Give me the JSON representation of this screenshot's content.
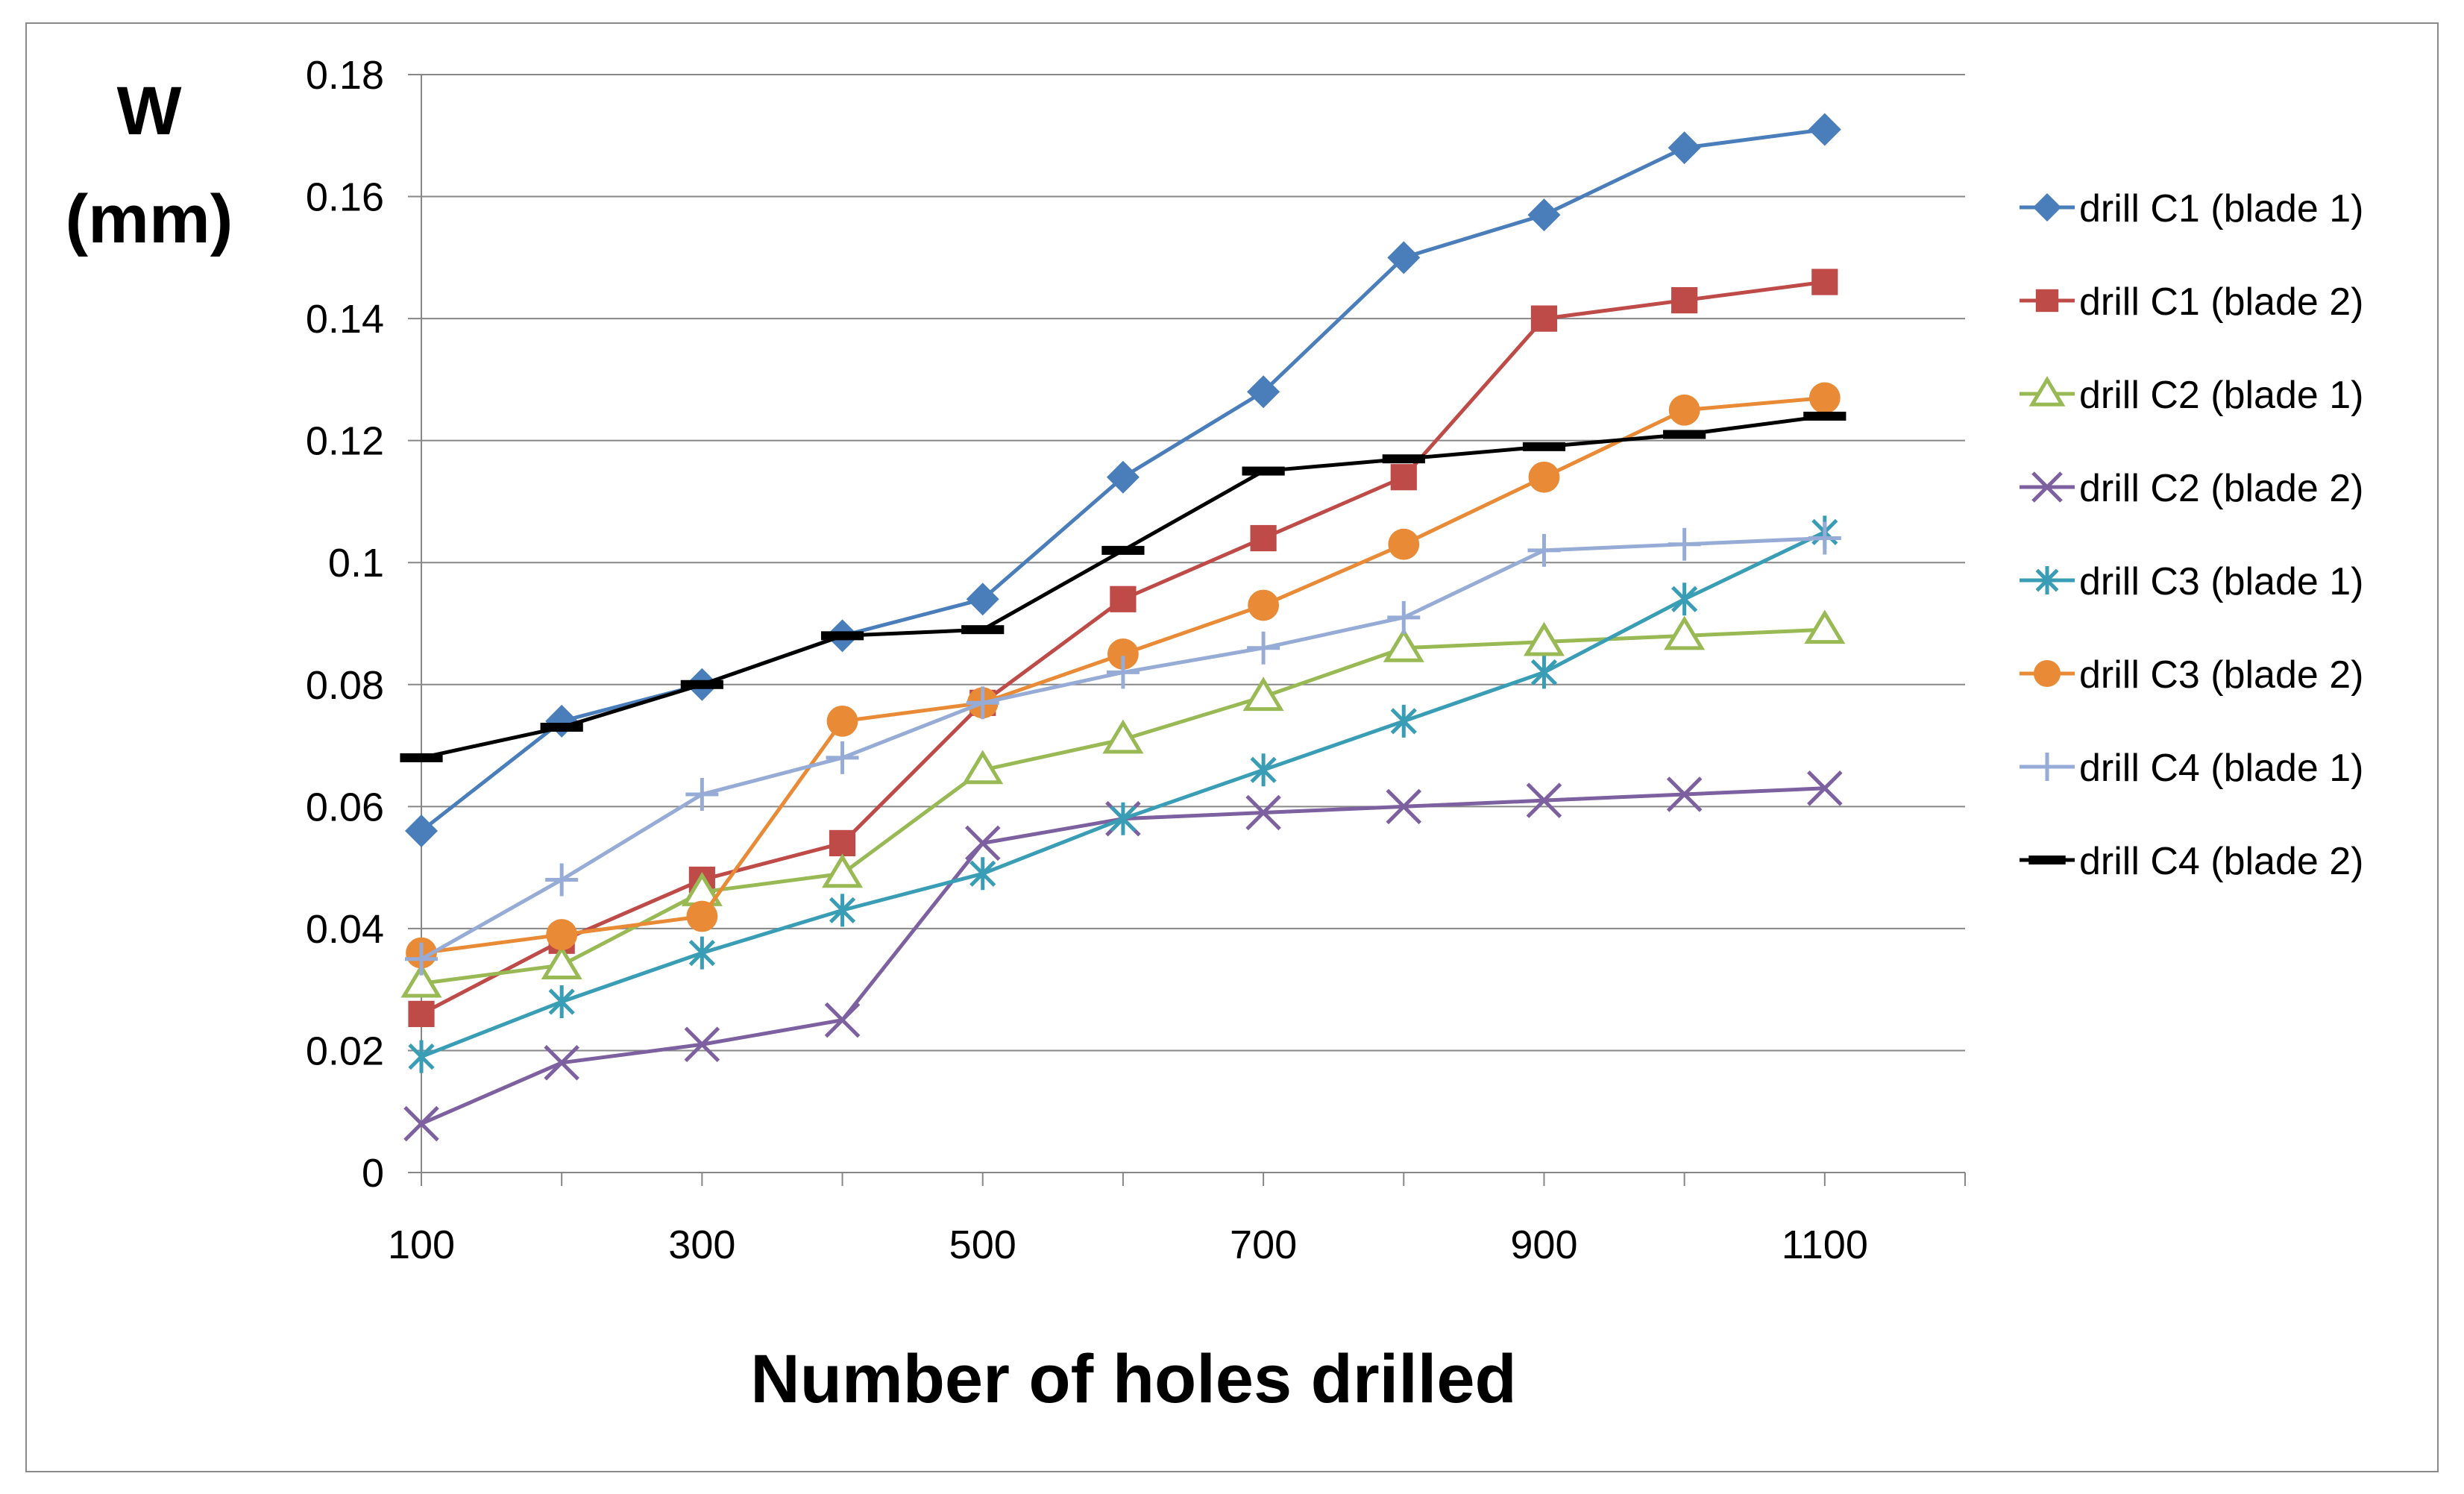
{
  "chart_data": {
    "type": "line",
    "title": "",
    "xlabel": "Number of holes drilled",
    "ylabel_line1": "W",
    "ylabel_line2": "(mm)",
    "x": [
      100,
      200,
      300,
      400,
      500,
      600,
      700,
      800,
      900,
      1000,
      1100
    ],
    "xlim": [
      100,
      1200
    ],
    "ylim": [
      0,
      0.18
    ],
    "xticks": [
      "100",
      "300",
      "500",
      "700",
      "900",
      "1100"
    ],
    "yticks": [
      "0",
      "0.02",
      "0.04",
      "0.06",
      "0.08",
      "0.1",
      "0.12",
      "0.14",
      "0.16",
      "0.18"
    ],
    "grid": "horizontal",
    "legend_position": "right",
    "series": [
      {
        "name": "drill C1 (blade 1)",
        "color": "#4A7EBB",
        "marker": "diamond",
        "values": [
          0.056,
          0.074,
          0.08,
          0.088,
          0.094,
          0.114,
          0.128,
          0.15,
          0.157,
          0.168,
          0.171
        ]
      },
      {
        "name": "drill C1 (blade 2)",
        "color": "#BE4B48",
        "marker": "square",
        "values": [
          0.026,
          0.038,
          0.048,
          0.054,
          0.077,
          0.094,
          0.104,
          0.114,
          0.14,
          0.143,
          0.146
        ]
      },
      {
        "name": "drill C2 (blade 1)",
        "color": "#98B954",
        "marker": "triangle",
        "values": [
          0.031,
          0.034,
          0.046,
          0.049,
          0.066,
          0.071,
          0.078,
          0.086,
          0.087,
          0.088,
          0.089
        ]
      },
      {
        "name": "drill C2 (blade 2)",
        "color": "#7D60A0",
        "marker": "x",
        "values": [
          0.008,
          0.018,
          0.021,
          0.025,
          0.054,
          0.058,
          0.059,
          0.06,
          0.061,
          0.062,
          0.063
        ]
      },
      {
        "name": "drill C3 (blade 1)",
        "color": "#3A9DB6",
        "marker": "asterisk",
        "values": [
          0.019,
          0.028,
          0.036,
          0.043,
          0.049,
          0.058,
          0.066,
          0.074,
          0.082,
          0.094,
          0.105
        ]
      },
      {
        "name": "drill C3 (blade 2)",
        "color": "#E88A36",
        "marker": "circle",
        "values": [
          0.036,
          0.039,
          0.042,
          0.074,
          0.077,
          0.085,
          0.093,
          0.103,
          0.114,
          0.125,
          0.127
        ]
      },
      {
        "name": "drill C4 (blade 1)",
        "color": "#96ACD6",
        "marker": "plus",
        "values": [
          0.035,
          0.048,
          0.062,
          0.068,
          0.077,
          0.082,
          0.086,
          0.091,
          0.102,
          0.103,
          0.104
        ]
      },
      {
        "name": "drill C4 (blade 2)",
        "color": "#000000",
        "marker": "dash",
        "values": [
          0.068,
          0.073,
          0.08,
          0.088,
          0.089,
          0.102,
          0.115,
          0.117,
          0.119,
          0.121,
          0.124
        ]
      }
    ]
  }
}
